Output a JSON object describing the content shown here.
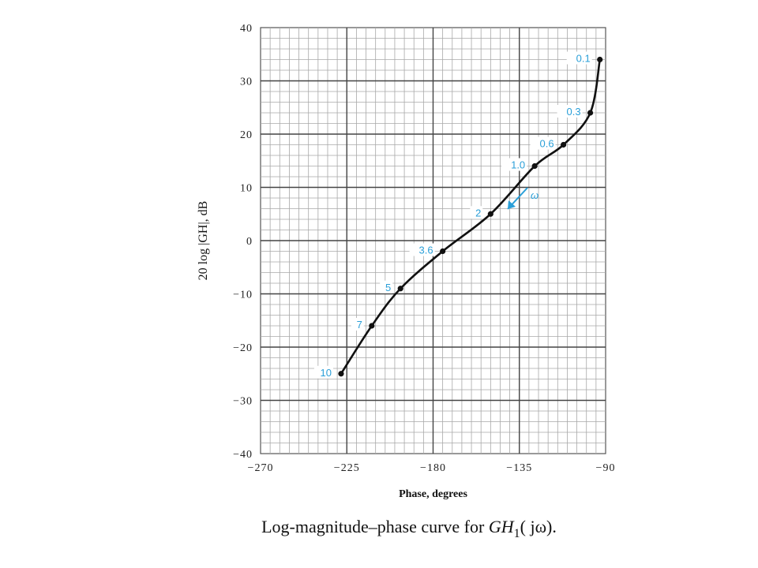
{
  "chart_data": {
    "type": "line",
    "title": "Log-magnitude–phase curve for GH₁(jω).",
    "caption": {
      "prefix": "Log-magnitude–phase curve for ",
      "fn": "GH",
      "sub": "1",
      "arg": "( jω)."
    },
    "xlabel": "Phase, degrees",
    "ylabel": "20 log |GH|, dB",
    "xlim": [
      -270,
      -90
    ],
    "ylim": [
      -40,
      40
    ],
    "x_ticks": [
      -270,
      -225,
      -180,
      -135,
      -90
    ],
    "x_tick_labels": [
      "−270",
      "−225",
      "−180",
      "−135",
      "−90"
    ],
    "y_ticks": [
      40,
      30,
      20,
      10,
      0,
      -10,
      -20,
      -30,
      -40
    ],
    "y_tick_labels": [
      "40",
      "30",
      "20",
      "10",
      "0",
      "−10",
      "−20",
      "−30",
      "−40"
    ],
    "grid": true,
    "label_color": "#2a9fd8",
    "direction_label": "ω",
    "series": [
      {
        "points": [
          {
            "x": -93,
            "y": 34,
            "label": "0.1"
          },
          {
            "x": -98,
            "y": 24,
            "label": "0.3"
          },
          {
            "x": -112,
            "y": 18,
            "label": "0.6"
          },
          {
            "x": -127,
            "y": 14,
            "label": "1.0"
          },
          {
            "x": -150,
            "y": 5,
            "label": "2"
          },
          {
            "x": -175,
            "y": -2,
            "label": "3.6"
          },
          {
            "x": -197,
            "y": -9,
            "label": "5"
          },
          {
            "x": -212,
            "y": -16,
            "label": "7"
          },
          {
            "x": -228,
            "y": -25,
            "label": "10"
          }
        ]
      }
    ]
  }
}
